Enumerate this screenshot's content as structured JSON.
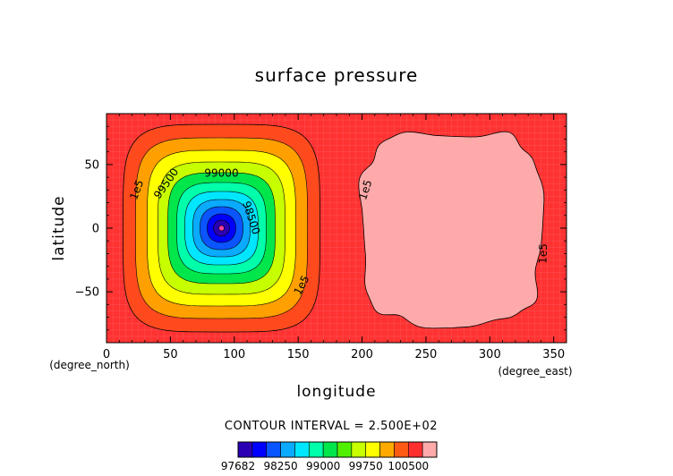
{
  "chart_data": {
    "type": "contour",
    "title": "surface pressure",
    "xlabel": "longitude",
    "ylabel": "latitude",
    "x_units": "(degree_east)",
    "y_units": "(degree_north)",
    "xlim": [
      0,
      360
    ],
    "ylim": [
      -90,
      90
    ],
    "x_ticks": [
      0,
      50,
      100,
      150,
      200,
      250,
      300,
      350
    ],
    "y_ticks": [
      -50,
      0,
      50
    ],
    "contour_interval_text": "CONTOUR INTERVAL = 2.500E+02",
    "contour_interval": 250,
    "low_center": {
      "lon": 90,
      "lat": 0,
      "value": 97682
    },
    "high_center": {
      "lon": 270,
      "lat": 0
    },
    "contour_labels": [
      {
        "text": "1e5",
        "lon": 24,
        "lat": 30,
        "angle": -70
      },
      {
        "text": "99500",
        "lon": 47,
        "lat": 35,
        "angle": -55
      },
      {
        "text": "99000",
        "lon": 90,
        "lat": 43,
        "angle": 0
      },
      {
        "text": "98500",
        "lon": 113,
        "lat": 8,
        "angle": 72
      },
      {
        "text": "1e5",
        "lon": 153,
        "lat": -45,
        "angle": -62
      },
      {
        "text": "1e5",
        "lon": 203,
        "lat": 30,
        "angle": -72
      },
      {
        "text": "1e5",
        "lon": 342,
        "lat": -20,
        "angle": -88
      }
    ],
    "colorbar": {
      "levels": [
        97682,
        97750,
        98000,
        98250,
        98500,
        98750,
        99000,
        99250,
        99500,
        99750,
        100000,
        100250,
        100500
      ],
      "tick_labels": [
        "97682",
        "98250",
        "99000",
        "99750",
        "100500"
      ],
      "colors": [
        "#2b00b4",
        "#0000ff",
        "#0a55ff",
        "#0aaaff",
        "#00e6ff",
        "#00ffaa",
        "#00e64b",
        "#50f000",
        "#c8ff00",
        "#ffff00",
        "#ffaa00",
        "#ff5a14",
        "#ff2f2f",
        "#ffaaaa"
      ]
    },
    "fill_colors": {
      "background": "#ff3232",
      "low_levels": [
        "#ff4a1e",
        "#ffa000",
        "#ffff00",
        "#c8ff00",
        "#00e64b",
        "#00ffaa",
        "#00e6ff",
        "#0aaaff",
        "#0a55ff",
        "#0000ff",
        "#2b00b4",
        "#ff40a0"
      ],
      "high_region": "#ffaaaa"
    }
  }
}
